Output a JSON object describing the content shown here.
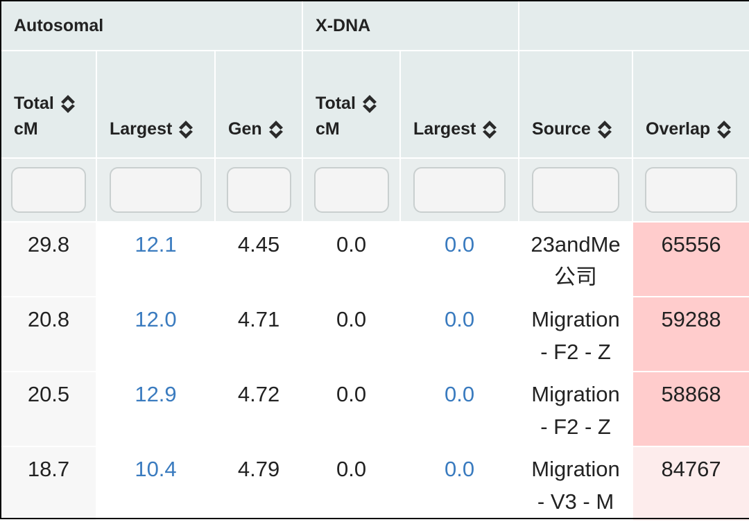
{
  "groups": {
    "autosomal": "Autosomal",
    "xdna": "X-DNA",
    "other": ""
  },
  "columns": [
    {
      "line1": "Total",
      "line2": "cM"
    },
    {
      "line1": "Largest"
    },
    {
      "line1": "Gen"
    },
    {
      "line1": "Total",
      "line2": "cM"
    },
    {
      "line1": "Largest"
    },
    {
      "line1": "Source"
    },
    {
      "line1": "Overlap"
    }
  ],
  "filters": [
    "",
    "",
    "",
    "",
    "",
    "",
    ""
  ],
  "rows": [
    {
      "auto_total": "29.8",
      "auto_largest": "12.1",
      "gen": "4.45",
      "x_total": "0.0",
      "x_largest": "0.0",
      "source_line1": "23andMe",
      "source_line2": "公司",
      "overlap": "65556",
      "overlap_color": "#ffcccc"
    },
    {
      "auto_total": "20.8",
      "auto_largest": "12.0",
      "gen": "4.71",
      "x_total": "0.0",
      "x_largest": "0.0",
      "source_line1": "Migration",
      "source_line2": "- F2 - Z",
      "overlap": "59288",
      "overlap_color": "#ffcccc"
    },
    {
      "auto_total": "20.5",
      "auto_largest": "12.9",
      "gen": "4.72",
      "x_total": "0.0",
      "x_largest": "0.0",
      "source_line1": "Migration",
      "source_line2": "- F2 - Z",
      "overlap": "58868",
      "overlap_color": "#ffcccc"
    },
    {
      "auto_total": "18.7",
      "auto_largest": "10.4",
      "gen": "4.79",
      "x_total": "0.0",
      "x_largest": "0.0",
      "source_line1": "Migration",
      "source_line2": "- V3 - M",
      "overlap": "84767",
      "overlap_color": "#fdecec"
    }
  ],
  "colors": {
    "header_bg": "#e4ecec",
    "link": "#3a7bbf",
    "overlap_high": "#ffcccc",
    "overlap_low": "#fdecec"
  },
  "icons": {
    "sort": "sort-up-down-icon"
  }
}
